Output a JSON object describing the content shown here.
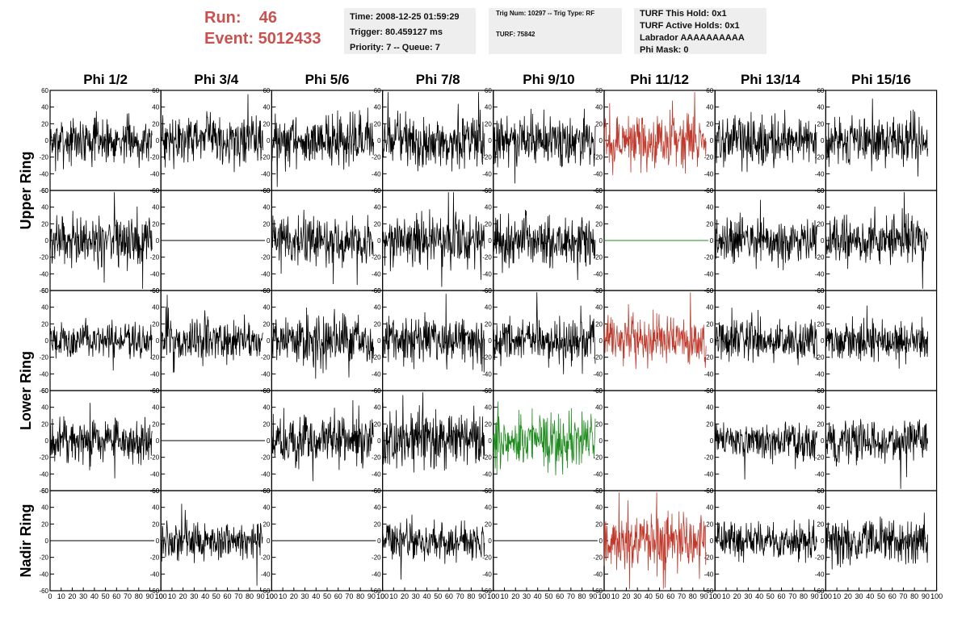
{
  "header": {
    "run_label": "Run:    46",
    "event_label": "Event: 5012433",
    "time": "Time: 2008-12-25 01:59:29",
    "trigger": "Trigger: 80.459127 ms",
    "priority": "Priority: 7 -- Queue: 7",
    "trig_num": "Trig Num: 10297 -- Trig Type: RF",
    "turf": "TURF: 75842",
    "turf_this_hold": "TURF This Hold: 0x1",
    "turf_active_holds": "TURF Active Holds: 0x1",
    "labrador": "Labrador AAAAAAAAAA",
    "phi_mask": "Phi Mask: 0"
  },
  "colors": {
    "header_red": "#c9524f",
    "trace_black": "#000000",
    "trace_red": "#c0392b",
    "trace_green": "#1e8c1e",
    "panel_border": "#000000"
  },
  "chart_data": {
    "type": "line",
    "columns": [
      "Phi 1/2",
      "Phi 3/4",
      "Phi 5/6",
      "Phi 7/8",
      "Phi 9/10",
      "Phi 11/12",
      "Phi 13/14",
      "Phi 15/16"
    ],
    "row_groups": [
      {
        "label": "Upper Ring",
        "rows": [
          0,
          1
        ]
      },
      {
        "label": "Lower Ring",
        "rows": [
          2,
          3
        ]
      },
      {
        "label": "Nadir Ring",
        "rows": [
          4
        ]
      }
    ],
    "xlim": [
      0,
      100
    ],
    "ylim": [
      -60,
      60
    ],
    "xticks": [
      0,
      10,
      20,
      30,
      40,
      50,
      60,
      70,
      80,
      90,
      100
    ],
    "yticks": [
      -60,
      -40,
      -20,
      0,
      20,
      40,
      60
    ],
    "x_extent": 92,
    "panels": [
      [
        {
          "c": "black",
          "a": 13
        },
        {
          "c": "black",
          "a": 14
        },
        {
          "c": "black",
          "a": 15
        },
        {
          "c": "black",
          "a": 16
        },
        {
          "c": "black",
          "a": 14
        },
        {
          "c": "red",
          "a": 15
        },
        {
          "c": "black",
          "a": 14
        },
        {
          "c": "black",
          "a": 14
        }
      ],
      [
        {
          "c": "black",
          "a": 15
        },
        {
          "c": "flat",
          "a": 0
        },
        {
          "c": "black",
          "a": 14
        },
        {
          "c": "black",
          "a": 15
        },
        {
          "c": "black",
          "a": 15
        },
        {
          "c": "greenflat",
          "a": 0
        },
        {
          "c": "black",
          "a": 13
        },
        {
          "c": "black",
          "a": 14
        }
      ],
      [
        {
          "c": "black",
          "a": 10
        },
        {
          "c": "black",
          "a": 12
        },
        {
          "c": "black",
          "a": 15
        },
        {
          "c": "black",
          "a": 13
        },
        {
          "c": "black",
          "a": 12
        },
        {
          "c": "red",
          "a": 14
        },
        {
          "c": "black",
          "a": 13
        },
        {
          "c": "black",
          "a": 12
        }
      ],
      [
        {
          "c": "black",
          "a": 13
        },
        {
          "c": "flat",
          "a": 0
        },
        {
          "c": "black",
          "a": 16
        },
        {
          "c": "black",
          "a": 17
        },
        {
          "c": "green",
          "a": 16
        },
        {
          "c": "none",
          "a": 0
        },
        {
          "c": "black",
          "a": 11
        },
        {
          "c": "black",
          "a": 13
        }
      ],
      [
        {
          "c": "flat",
          "a": 0
        },
        {
          "c": "black",
          "a": 11
        },
        {
          "c": "flat",
          "a": 0
        },
        {
          "c": "black",
          "a": 11
        },
        {
          "c": "flat",
          "a": 0
        },
        {
          "c": "red",
          "a": 16
        },
        {
          "c": "black",
          "a": 11
        },
        {
          "c": "black",
          "a": 14
        }
      ]
    ]
  }
}
